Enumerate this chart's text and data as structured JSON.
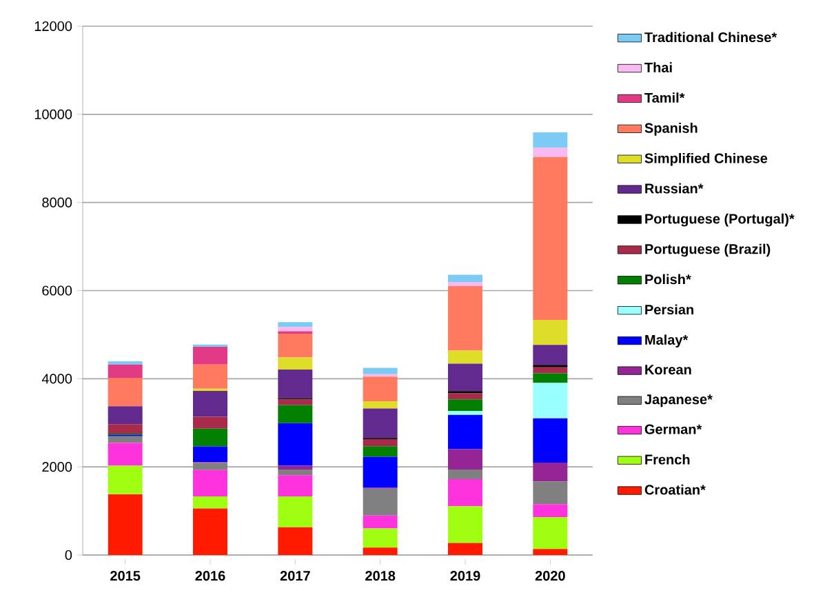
{
  "chart_data": {
    "type": "bar",
    "stacked": true,
    "categories": [
      "2015",
      "2016",
      "2017",
      "2018",
      "2019",
      "2020"
    ],
    "ylim": [
      0,
      12000
    ],
    "yticks": [
      0,
      2000,
      4000,
      6000,
      8000,
      10000,
      12000
    ],
    "grid": "y",
    "legend": "right",
    "series": [
      {
        "name": "Croatian*",
        "color": "#ff1a00",
        "values": [
          1380,
          1057,
          630,
          169,
          275,
          136
        ]
      },
      {
        "name": "French",
        "color": "#a0ff10",
        "values": [
          647,
          271,
          698,
          433,
          830,
          723
        ]
      },
      {
        "name": "German*",
        "color": "#ff33dd",
        "values": [
          515,
          599,
          483,
          295,
          615,
          296
        ]
      },
      {
        "name": "Japanese*",
        "color": "#808080",
        "values": [
          153,
          162,
          131,
          610,
          221,
          515
        ]
      },
      {
        "name": "Korean",
        "color": "#952594",
        "values": [
          0,
          20,
          85,
          20,
          459,
          428
        ]
      },
      {
        "name": "Malay*",
        "color": "#0000ff",
        "values": [
          30,
          355,
          965,
          701,
          778,
          1005
        ]
      },
      {
        "name": "Persian",
        "color": "#99ffff",
        "values": [
          0,
          0,
          0,
          0,
          89,
          805
        ]
      },
      {
        "name": "Polish*",
        "color": "#007f00",
        "values": [
          30,
          401,
          410,
          240,
          264,
          214
        ]
      },
      {
        "name": "Portuguese (Brazil)",
        "color": "#aa2a4c",
        "values": [
          214,
          271,
          131,
          159,
          138,
          137
        ]
      },
      {
        "name": "Portuguese (Portugal)*",
        "color": "#000000",
        "values": [
          0,
          0,
          28,
          28,
          50,
          57
        ]
      },
      {
        "name": "Russian*",
        "color": "#62298f",
        "values": [
          406,
          588,
          648,
          670,
          623,
          453
        ]
      },
      {
        "name": "Simplified Chinese",
        "color": "#dede2a",
        "values": [
          0,
          52,
          272,
          164,
          296,
          565
        ]
      },
      {
        "name": "Spanish",
        "color": "#ff7a5e",
        "values": [
          645,
          547,
          541,
          558,
          1464,
          3696
        ]
      },
      {
        "name": "Tamil*",
        "color": "#e23a85",
        "values": [
          303,
          400,
          56,
          0,
          0,
          0
        ]
      },
      {
        "name": "Thai",
        "color": "#f8b8f0",
        "values": [
          0,
          0,
          97,
          56,
          93,
          214
        ]
      },
      {
        "name": "Traditional Chinese*",
        "color": "#7ccbf5",
        "values": [
          72,
          53,
          108,
          143,
          164,
          345
        ]
      }
    ]
  }
}
